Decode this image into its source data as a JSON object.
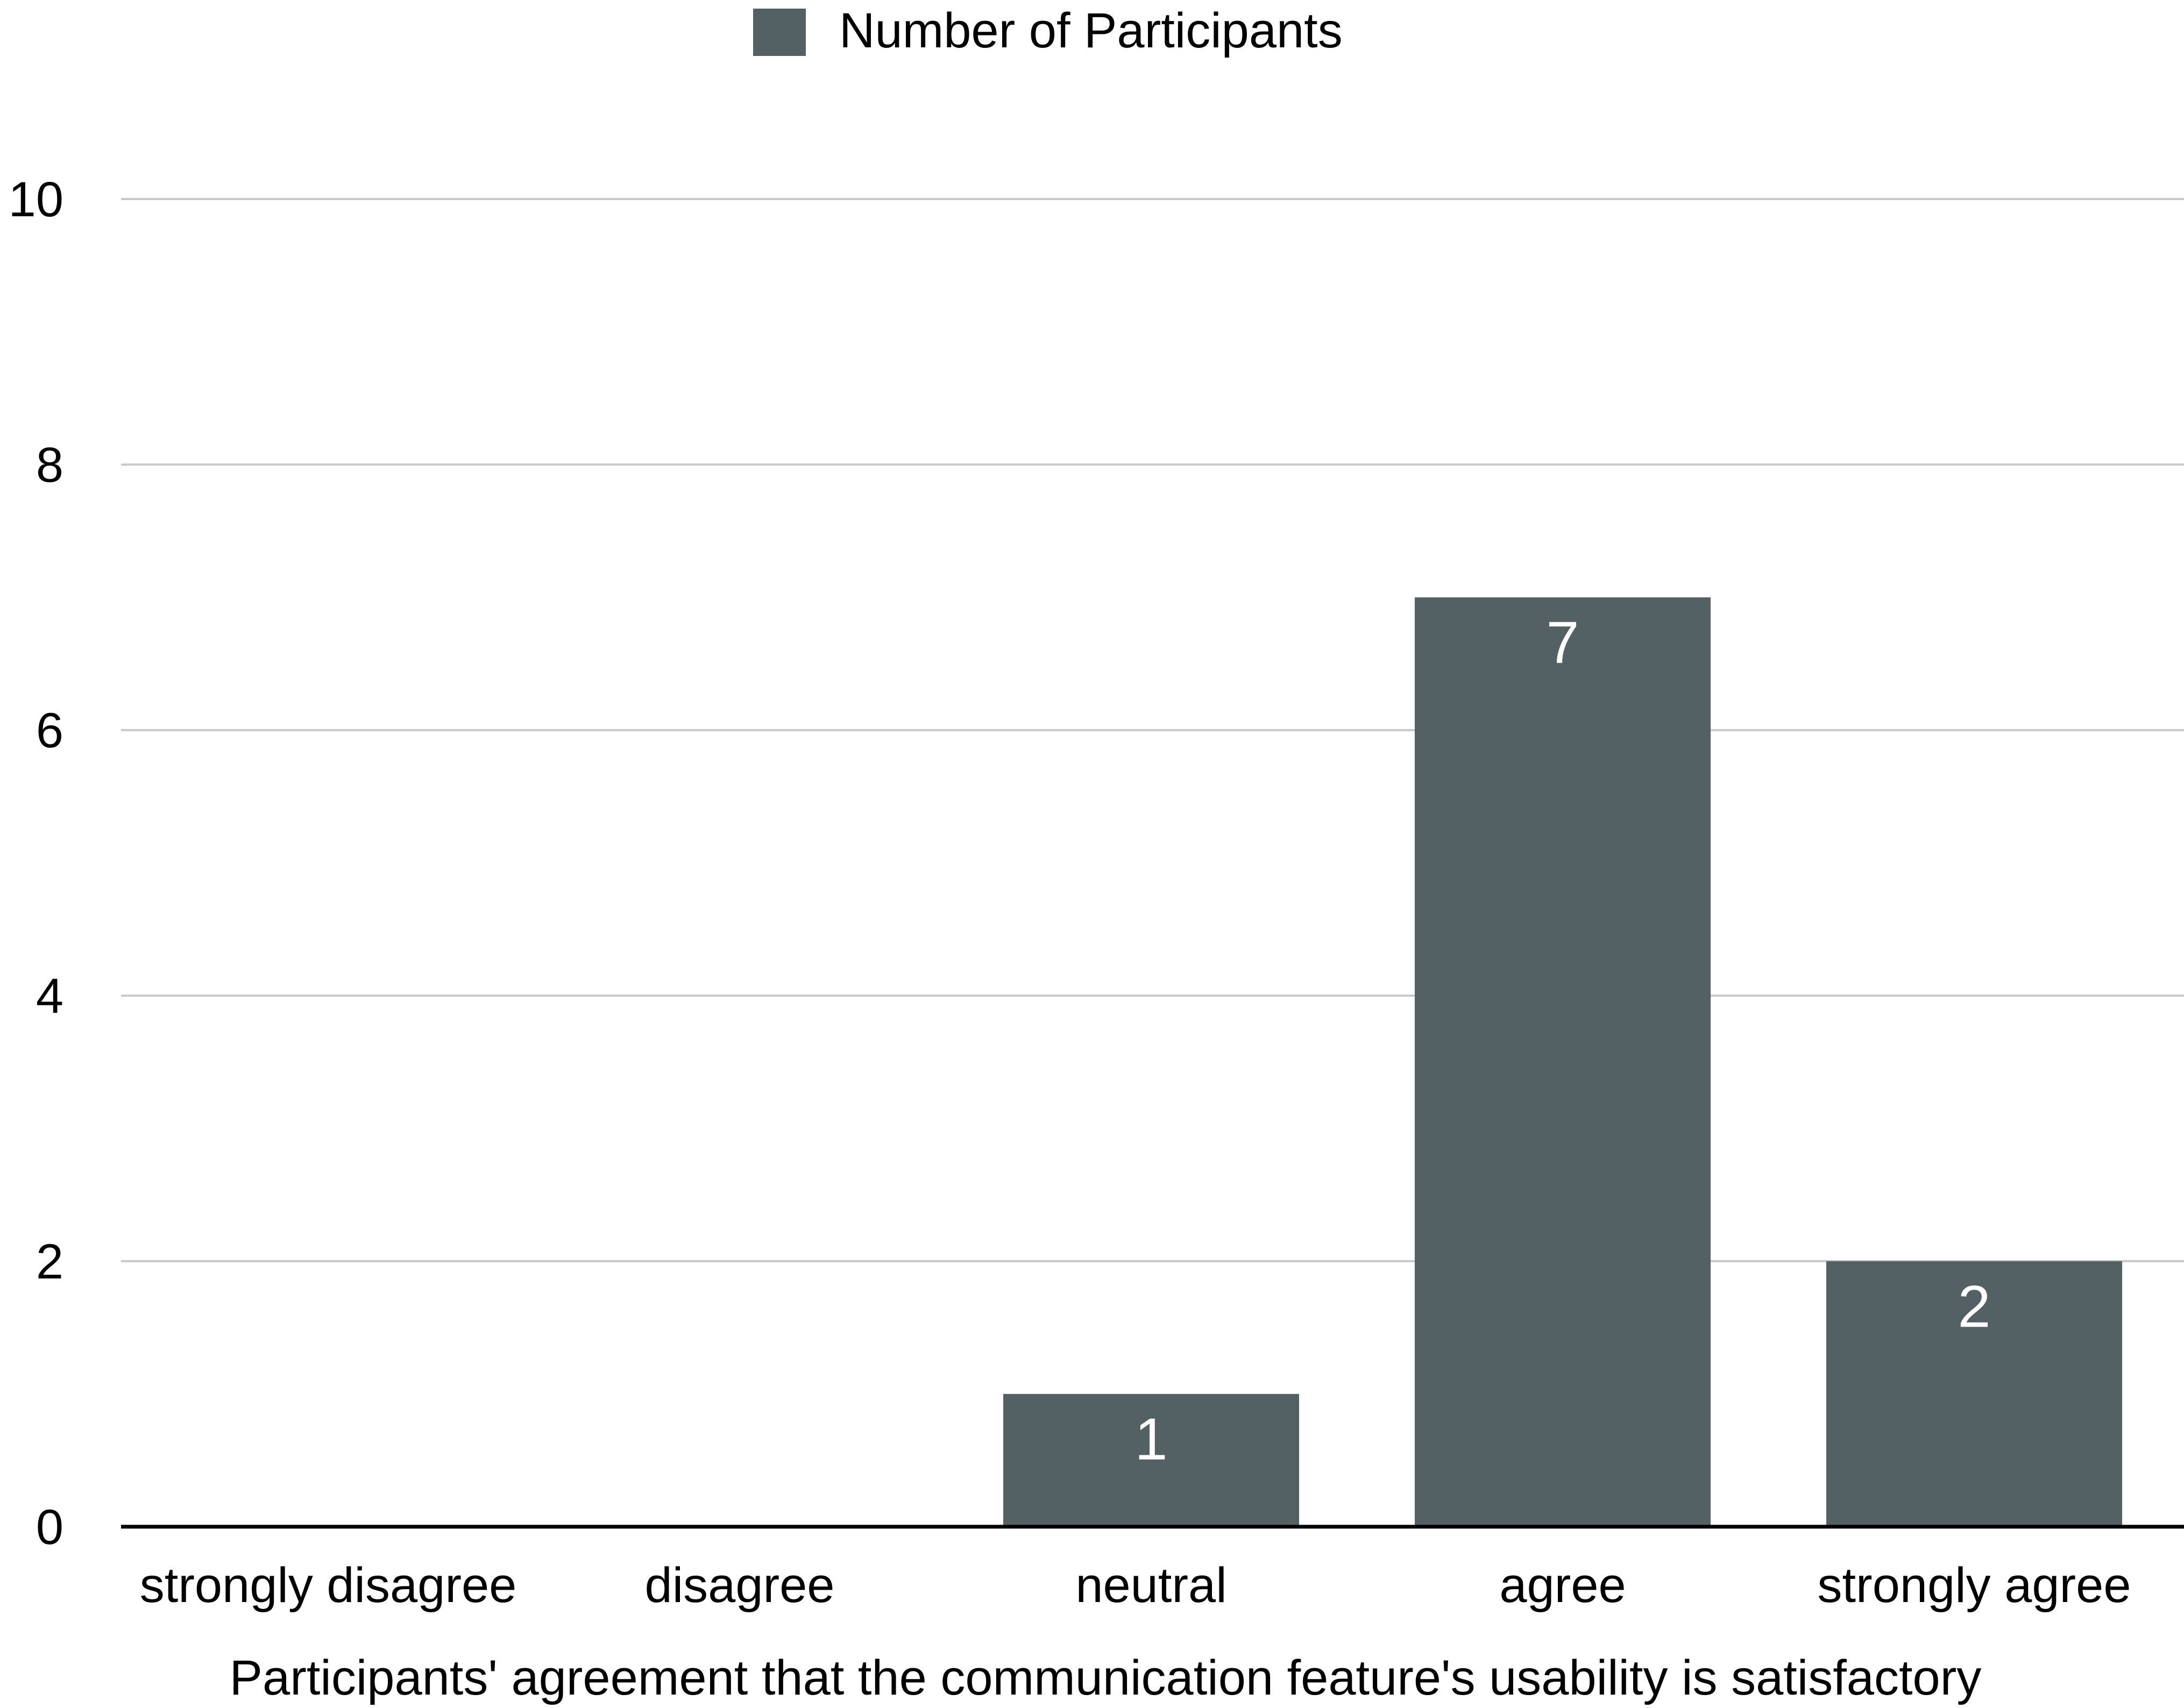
{
  "chart_data": {
    "type": "bar",
    "categories": [
      "strongly disagree",
      "disagree",
      "neutral",
      "agree",
      "strongly agree"
    ],
    "series": [
      {
        "name": "Number of Participants",
        "values": [
          0,
          0,
          1,
          7,
          2
        ],
        "data_labels": [
          "",
          "",
          "1",
          "7",
          "2"
        ]
      }
    ],
    "xlabel": "Participants' agreement that the communication feature's usability is satisfactory",
    "ylabel": "",
    "ylim": [
      0,
      10
    ],
    "y_ticks": [
      0,
      2,
      4,
      6,
      8,
      10
    ],
    "y_tick_labels": [
      "0",
      "2",
      "4",
      "6",
      "8",
      "10"
    ],
    "grid": true,
    "legend_position": "top-center",
    "colors": {
      "bar": "#536164",
      "grid": "#c8c8c8",
      "axis": "#000000",
      "text": "#000000",
      "data_label": "#ffffff"
    }
  }
}
